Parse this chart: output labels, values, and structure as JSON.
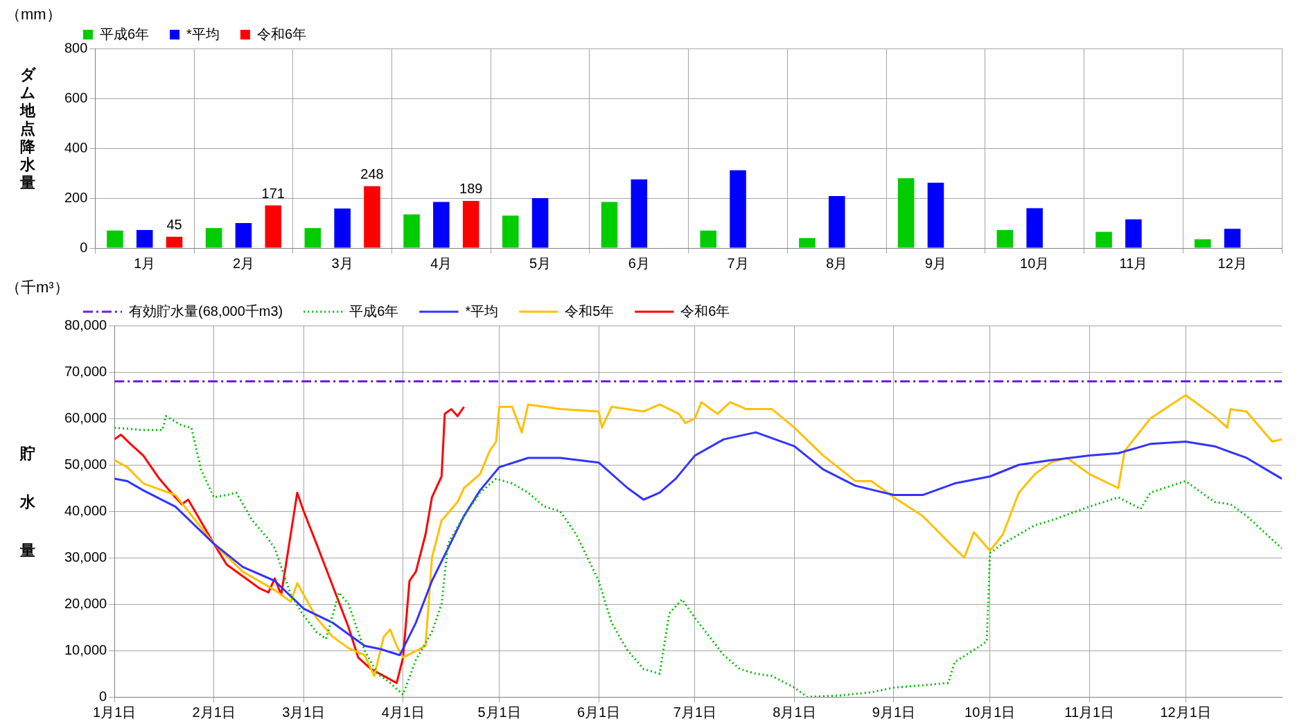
{
  "chart_data": [
    {
      "type": "bar",
      "categories": [
        "1月",
        "2月",
        "3月",
        "4月",
        "5月",
        "6月",
        "7月",
        "8月",
        "9月",
        "10月",
        "11月",
        "12月"
      ],
      "ylabel": "ダム地点降水量",
      "annotations": [
        "（mm）"
      ],
      "ylim": [
        0,
        800
      ],
      "yticks": [
        0,
        200,
        400,
        600,
        800
      ],
      "grid": true,
      "legend": "top left",
      "series": [
        {
          "name": "平成6年",
          "color": "#00cc00",
          "values": [
            70,
            80,
            80,
            135,
            130,
            185,
            70,
            40,
            280,
            72,
            65,
            35
          ]
        },
        {
          "name": "*平均",
          "color": "#0000ff",
          "values": [
            72,
            100,
            158,
            185,
            200,
            275,
            312,
            208,
            262,
            160,
            115,
            77
          ]
        },
        {
          "name": "令和6年",
          "color": "#ff0000",
          "values": [
            45,
            171,
            248,
            189,
            null,
            null,
            null,
            null,
            null,
            null,
            null,
            null
          ],
          "value_labels": [
            "45",
            "171",
            "248",
            "189",
            null,
            null,
            null,
            null,
            null,
            null,
            null,
            null
          ]
        }
      ]
    },
    {
      "type": "line",
      "ylabel": "貯水量",
      "annotations": [
        "（千m³）"
      ],
      "xlim": [
        "--01-01",
        "--12-31"
      ],
      "xticks": [
        {
          "value": "--01-01",
          "label": "1月1日"
        },
        {
          "value": "--02-01",
          "label": "2月1日"
        },
        {
          "value": "--03-01",
          "label": "3月1日"
        },
        {
          "value": "--04-01",
          "label": "4月1日"
        },
        {
          "value": "--05-01",
          "label": "5月1日"
        },
        {
          "value": "--06-01",
          "label": "6月1日"
        },
        {
          "value": "--07-01",
          "label": "7月1日"
        },
        {
          "value": "--08-01",
          "label": "8月1日"
        },
        {
          "value": "--09-01",
          "label": "9月1日"
        },
        {
          "value": "--10-01",
          "label": "10月1日"
        },
        {
          "value": "--11-01",
          "label": "11月1日"
        },
        {
          "value": "--12-01",
          "label": "12月1日"
        }
      ],
      "ylim": [
        0,
        80000
      ],
      "yticks": [
        0,
        {
          "value": 10000,
          "label": "10,000"
        },
        {
          "value": 20000,
          "label": "20,000"
        },
        {
          "value": 30000,
          "label": "30,000"
        },
        {
          "value": 40000,
          "label": "40,000"
        },
        {
          "value": 50000,
          "label": "50,000"
        },
        {
          "value": 60000,
          "label": "60,000"
        },
        {
          "value": 70000,
          "label": "70,000"
        },
        {
          "value": 80000,
          "label": "80,000"
        }
      ],
      "grid": true,
      "legend": "top left",
      "marker": "none",
      "ref_lines": [
        {
          "axis": "y",
          "value": 68000,
          "label": "有効貯水量(68,000千m3)",
          "color": "#6a1fe0",
          "line_style": "dashdot"
        }
      ],
      "series": [
        {
          "name": "平成6年",
          "color": "#00bb00",
          "line_style": "dotted",
          "x": [
            "--01-01",
            "--01-10",
            "--01-16",
            "--01-17",
            "--01-22",
            "--01-25",
            "--01-28",
            "--02-01",
            "--02-05",
            "--02-08",
            "--02-13",
            "--02-18",
            "--02-20",
            "--02-25",
            "--03-01",
            "--03-05",
            "--03-08",
            "--03-12",
            "--03-15",
            "--03-20",
            "--03-24",
            "--03-28",
            "--04-01",
            "--04-05",
            "--04-10",
            "--04-13",
            "--04-15",
            "--04-20",
            "--04-25",
            "--04-30",
            "--05-05",
            "--05-10",
            "--05-15",
            "--05-20",
            "--05-25",
            "--06-01",
            "--06-05",
            "--06-10",
            "--06-15",
            "--06-20",
            "--06-23",
            "--06-27",
            "--07-01",
            "--07-10",
            "--07-15",
            "--07-20",
            "--07-25",
            "--08-01",
            "--08-05",
            "--08-15",
            "--08-25",
            "--09-01",
            "--09-10",
            "--09-18",
            "--09-20",
            "--09-28",
            "--09-30",
            "--10-01",
            "--10-05",
            "--10-15",
            "--10-20",
            "--11-01",
            "--11-10",
            "--11-17",
            "--11-20",
            "--12-01",
            "--12-10",
            "--12-15",
            "--12-20",
            "--12-31"
          ],
          "values": [
            58000,
            57500,
            57500,
            60500,
            58500,
            58000,
            49000,
            43000,
            43500,
            44000,
            38000,
            34000,
            32000,
            22000,
            17500,
            14000,
            12500,
            22500,
            20000,
            10000,
            5000,
            3000,
            500,
            8000,
            14000,
            20000,
            33000,
            39000,
            44000,
            47000,
            46000,
            44000,
            41000,
            40000,
            35000,
            25000,
            16000,
            10000,
            6000,
            5000,
            18000,
            21000,
            17000,
            9000,
            6000,
            5000,
            4500,
            2000,
            0,
            300,
            1000,
            2000,
            2500,
            3000,
            7500,
            11000,
            12000,
            31000,
            33000,
            37000,
            38000,
            41000,
            43000,
            40500,
            44000,
            46500,
            42000,
            41500,
            39000,
            32000
          ]
        },
        {
          "name": "*平均",
          "color": "#3333ff",
          "x": [
            "--01-01",
            "--01-05",
            "--01-10",
            "--01-20",
            "--02-01",
            "--02-10",
            "--02-20",
            "--03-01",
            "--03-10",
            "--03-20",
            "--03-25",
            "--03-31",
            "--04-05",
            "--04-10",
            "--04-15",
            "--04-20",
            "--04-25",
            "--05-01",
            "--05-10",
            "--05-20",
            "--06-01",
            "--06-10",
            "--06-15",
            "--06-20",
            "--06-25",
            "--07-01",
            "--07-10",
            "--07-20",
            "--08-01",
            "--08-10",
            "--08-20",
            "--09-01",
            "--09-10",
            "--09-20",
            "--10-01",
            "--10-10",
            "--10-20",
            "--11-01",
            "--11-10",
            "--11-20",
            "--12-01",
            "--12-10",
            "--12-20",
            "--12-31"
          ],
          "values": [
            47000,
            46500,
            44500,
            41000,
            33000,
            28000,
            25000,
            19000,
            16000,
            11000,
            10300,
            9000,
            16000,
            25000,
            32000,
            39000,
            44500,
            49500,
            51500,
            51500,
            50500,
            45000,
            42500,
            44000,
            47000,
            52000,
            55500,
            57000,
            54000,
            49000,
            45500,
            43500,
            43500,
            46000,
            47500,
            50000,
            51000,
            52000,
            52500,
            54500,
            55000,
            54000,
            51500,
            47000
          ]
        },
        {
          "name": "令和5年",
          "color": "#ffc000",
          "x": [
            "--01-01",
            "--01-05",
            "--01-10",
            "--01-20",
            "--02-01",
            "--02-10",
            "--02-20",
            "--02-25",
            "--02-27",
            "--03-01",
            "--03-05",
            "--03-10",
            "--03-15",
            "--03-20",
            "--03-23",
            "--03-26",
            "--03-28",
            "--03-30",
            "--04-01",
            "--04-08",
            "--04-10",
            "--04-13",
            "--04-18",
            "--04-20",
            "--04-25",
            "--04-28",
            "--04-30",
            "--05-01",
            "--05-05",
            "--05-08",
            "--05-10",
            "--05-20",
            "--06-01",
            "--06-02",
            "--06-05",
            "--06-15",
            "--06-20",
            "--06-26",
            "--06-28",
            "--07-01",
            "--07-03",
            "--07-08",
            "--07-12",
            "--07-17",
            "--07-25",
            "--08-01",
            "--08-10",
            "--08-20",
            "--08-25",
            "--09-01",
            "--09-10",
            "--09-20",
            "--09-23",
            "--09-26",
            "--10-01",
            "--10-05",
            "--10-10",
            "--10-15",
            "--10-20",
            "--10-25",
            "--11-01",
            "--11-10",
            "--11-12",
            "--11-20",
            "--12-01",
            "--12-10",
            "--12-14",
            "--12-15",
            "--12-20",
            "--12-28",
            "--12-31"
          ],
          "values": [
            51000,
            49500,
            46000,
            43500,
            33000,
            27000,
            23000,
            20500,
            24500,
            22000,
            17000,
            13000,
            10500,
            9000,
            4500,
            13000,
            14500,
            11000,
            8500,
            11000,
            30000,
            38000,
            42000,
            45000,
            48000,
            53000,
            55000,
            62500,
            62500,
            57000,
            63000,
            62000,
            61500,
            58000,
            62500,
            61500,
            63000,
            61000,
            59000,
            60000,
            63500,
            61000,
            63500,
            62000,
            62000,
            58000,
            52000,
            46500,
            46500,
            43000,
            39000,
            32000,
            30000,
            35500,
            31500,
            35000,
            44000,
            48000,
            50500,
            51500,
            48000,
            45000,
            53000,
            60000,
            65000,
            60500,
            58000,
            62000,
            61500,
            55000,
            55500
          ]
        },
        {
          "name": "令和6年",
          "color": "#ff0000",
          "x": [
            "--01-01",
            "--01-03",
            "--01-06",
            "--01-10",
            "--01-15",
            "--01-20",
            "--01-22",
            "--01-24",
            "--02-01",
            "--02-05",
            "--02-10",
            "--02-15",
            "--02-18",
            "--02-20",
            "--02-22",
            "--02-27",
            "--03-01",
            "--03-05",
            "--03-10",
            "--03-15",
            "--03-18",
            "--03-22",
            "--03-26",
            "--03-30",
            "--04-01",
            "--04-03",
            "--04-05",
            "--04-08",
            "--04-10",
            "--04-13",
            "--04-14",
            "--04-16",
            "--04-18",
            "--04-20"
          ],
          "values": [
            55500,
            56500,
            54500,
            52000,
            47000,
            43000,
            41500,
            42500,
            33000,
            28500,
            26000,
            23500,
            22500,
            25500,
            22000,
            44000,
            40000,
            33000,
            24000,
            15000,
            8500,
            6000,
            4500,
            3000,
            8500,
            25000,
            27000,
            35000,
            43000,
            47500,
            61000,
            62000,
            60500,
            62500
          ]
        }
      ]
    }
  ]
}
